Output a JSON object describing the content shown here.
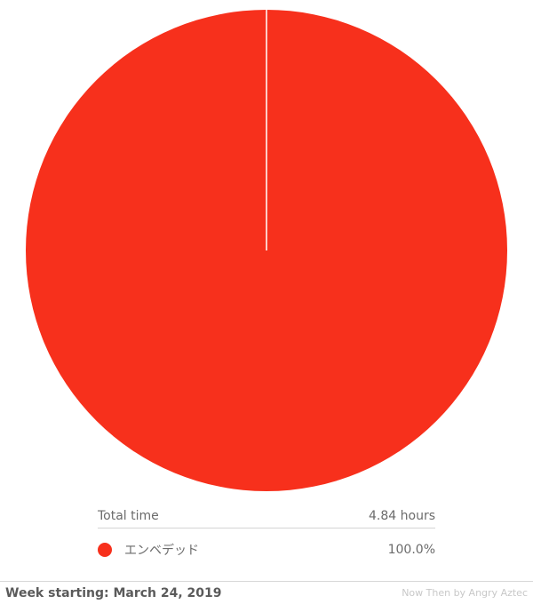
{
  "chart_data": {
    "type": "pie",
    "slices": [
      {
        "label": "エンベデッド",
        "value": 100.0,
        "display": "100.0%",
        "color": "#f7301c"
      }
    ]
  },
  "summary": {
    "total_label": "Total time",
    "total_value": "4.84 hours"
  },
  "footer": {
    "week": "Week starting: March 24, 2019",
    "credit": "Now Then by Angry Aztec"
  },
  "colors": {
    "accent": "#f7301c",
    "divider": "#d4d4d4"
  }
}
